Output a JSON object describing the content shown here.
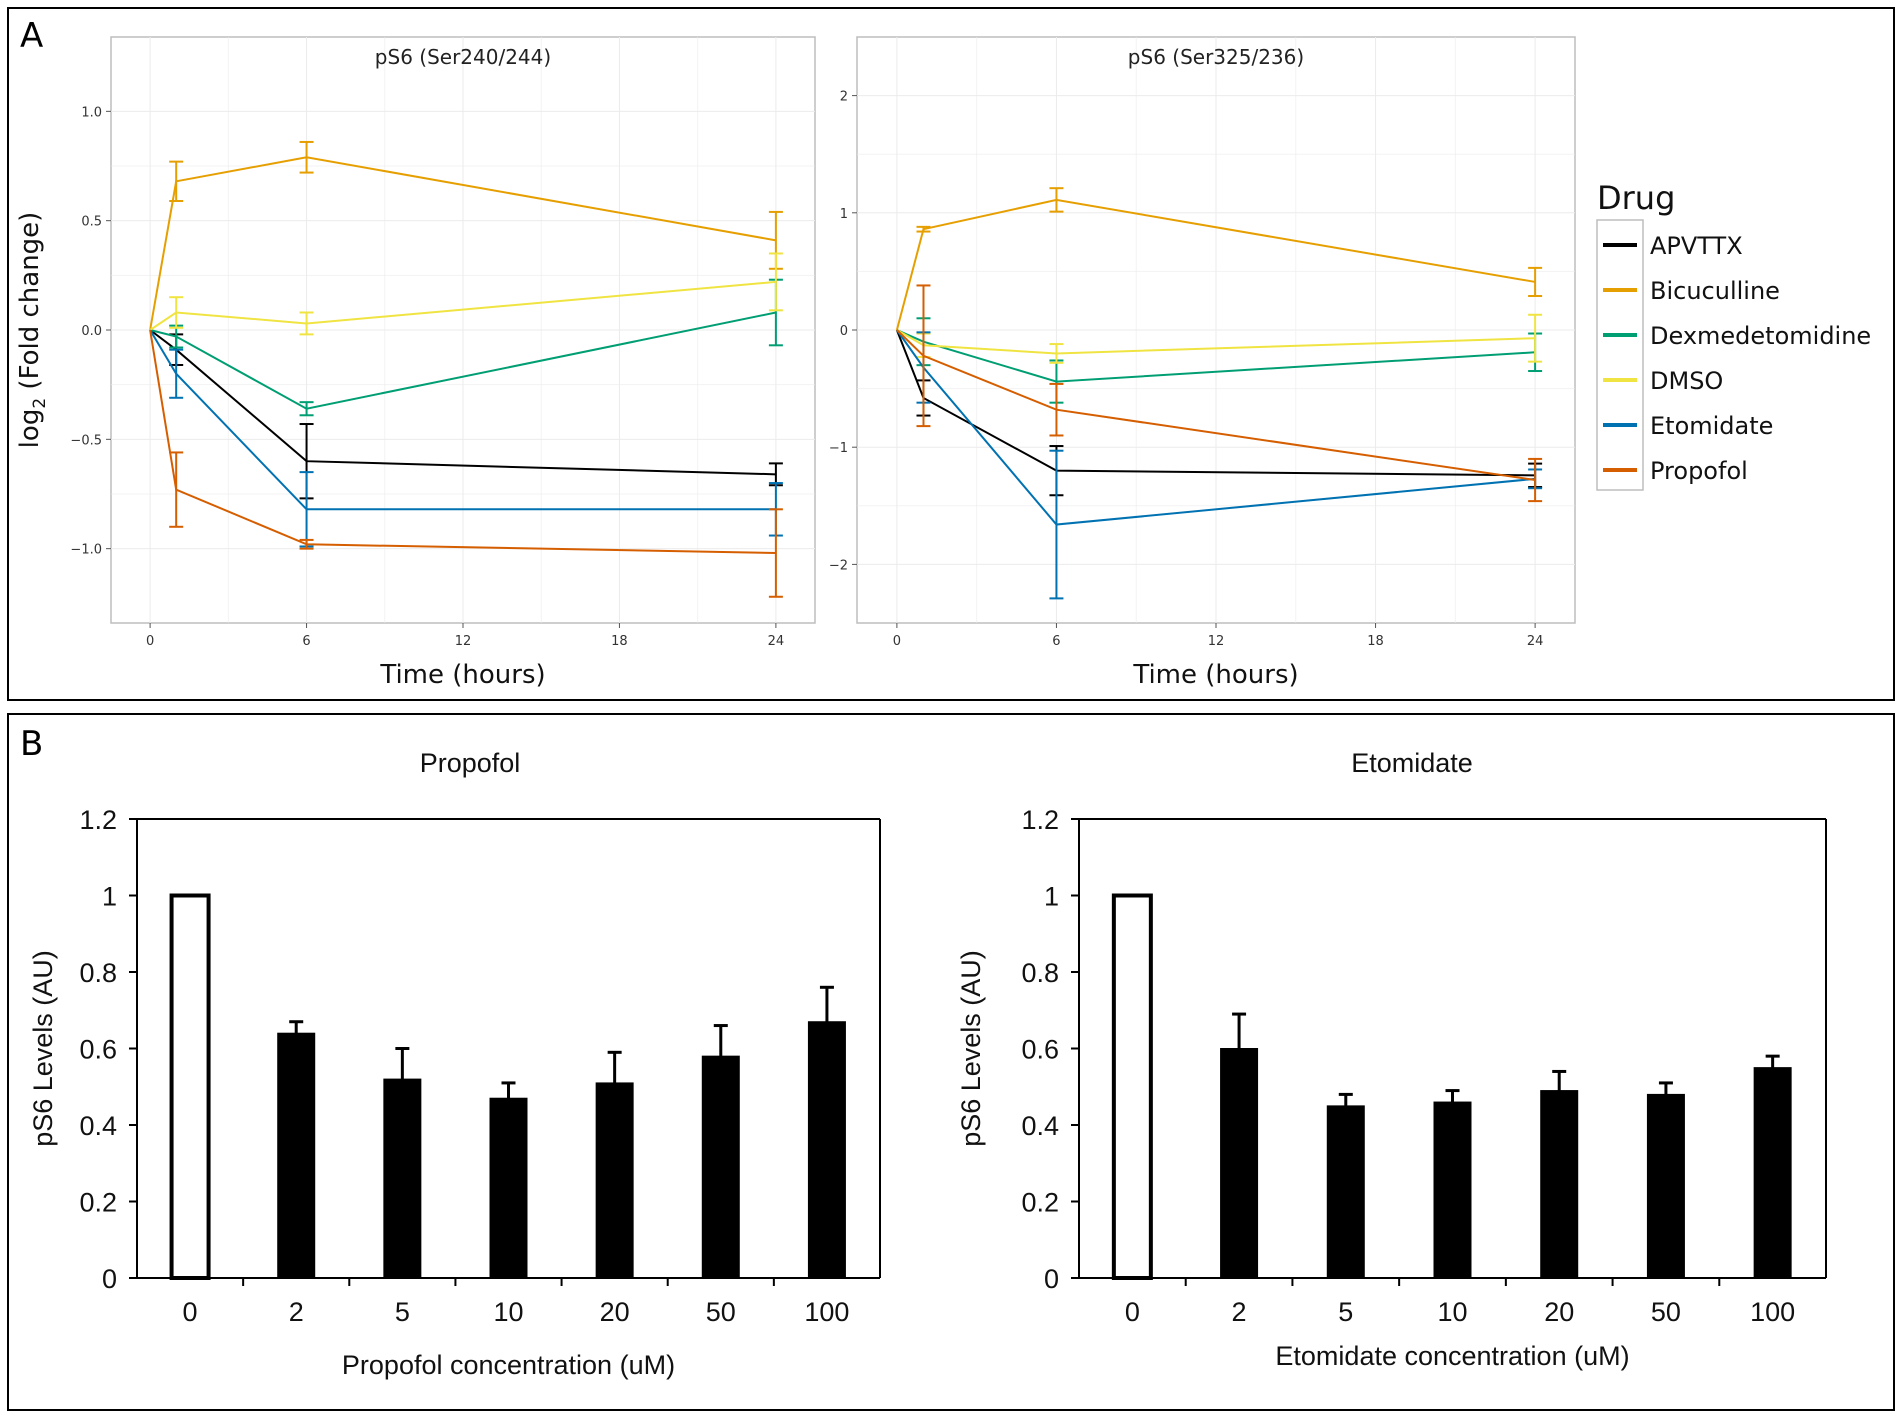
{
  "panel_labels": {
    "a": "A",
    "b": "B"
  },
  "legend": {
    "title": "Drug",
    "items": [
      {
        "name": "APVTTX",
        "color": "#000000"
      },
      {
        "name": "Bicuculline",
        "color": "#E69F00"
      },
      {
        "name": "Dexmedetomidine",
        "color": "#009E73"
      },
      {
        "name": "DMSO",
        "color": "#F0E442"
      },
      {
        "name": "Etomidate",
        "color": "#0072B2"
      },
      {
        "name": "Propofol",
        "color": "#D55E00"
      }
    ]
  },
  "chart_data": [
    {
      "type": "line",
      "title": "pS6 (Ser240/244)",
      "xlabel": "Time (hours)",
      "ylabel_main": "log",
      "ylabel_sub": "2",
      "ylabel_rest": " (Fold change)",
      "xlim": [
        -1.5,
        25.5
      ],
      "ylim": [
        -1.34,
        1.34
      ],
      "xticks": [
        0,
        6,
        12,
        18,
        24
      ],
      "yticks": [
        -1.0,
        -0.5,
        0.0,
        0.5,
        1.0
      ],
      "ytick_labels": [
        "−1.0",
        "−0.5",
        "0.0",
        "0.5",
        "1.0"
      ],
      "x": [
        0,
        1,
        6,
        24
      ],
      "series": [
        {
          "name": "APVTTX",
          "values": [
            0,
            -0.09,
            -0.6,
            -0.66
          ],
          "err": [
            0,
            0.07,
            0.17,
            0.05
          ]
        },
        {
          "name": "Bicuculline",
          "values": [
            0,
            0.68,
            0.79,
            0.41
          ],
          "err": [
            0,
            0.09,
            0.07,
            0.13
          ]
        },
        {
          "name": "Dexmedetomidine",
          "values": [
            0,
            -0.03,
            -0.36,
            0.08
          ],
          "err": [
            0,
            0.05,
            0.03,
            0.15
          ]
        },
        {
          "name": "DMSO",
          "values": [
            0,
            0.08,
            0.03,
            0.22
          ],
          "err": [
            0,
            0.07,
            0.05,
            0.13
          ]
        },
        {
          "name": "Etomidate",
          "values": [
            0,
            -0.2,
            -0.82,
            -0.82
          ],
          "err": [
            0,
            0.11,
            0.17,
            0.12
          ]
        },
        {
          "name": "Propofol",
          "values": [
            0,
            -0.73,
            -0.98,
            -1.02
          ],
          "err": [
            0,
            0.17,
            0.02,
            0.2
          ]
        }
      ]
    },
    {
      "type": "line",
      "title": "pS6 (Ser325/236)",
      "xlabel": "Time (hours)",
      "xlim": [
        -1.5,
        25.5
      ],
      "ylim": [
        -2.5,
        2.5
      ],
      "xticks": [
        0,
        6,
        12,
        18,
        24
      ],
      "yticks": [
        -2,
        -1,
        0,
        1,
        2
      ],
      "ytick_labels": [
        "−2",
        "−1",
        "0",
        "1",
        "2"
      ],
      "x": [
        0,
        1,
        6,
        24
      ],
      "series": [
        {
          "name": "APVTTX",
          "values": [
            0,
            -0.58,
            -1.2,
            -1.24
          ],
          "err": [
            0,
            0.15,
            0.21,
            0.1
          ]
        },
        {
          "name": "Bicuculline",
          "values": [
            0,
            0.86,
            1.11,
            0.41
          ],
          "err": [
            0,
            0.02,
            0.1,
            0.12
          ]
        },
        {
          "name": "Dexmedetomidine",
          "values": [
            0,
            -0.1,
            -0.44,
            -0.19
          ],
          "err": [
            0,
            0.2,
            0.18,
            0.16
          ]
        },
        {
          "name": "DMSO",
          "values": [
            0,
            -0.13,
            -0.2,
            -0.07
          ],
          "err": [
            0,
            0.1,
            0.08,
            0.2
          ]
        },
        {
          "name": "Etomidate",
          "values": [
            0,
            -0.32,
            -1.66,
            -1.27
          ],
          "err": [
            0,
            0.3,
            0.63,
            0.08
          ]
        },
        {
          "name": "Propofol",
          "values": [
            0,
            -0.22,
            -0.68,
            -1.28
          ],
          "err": [
            0,
            0.6,
            0.22,
            0.18
          ]
        }
      ]
    },
    {
      "type": "bar",
      "title": "Propofol",
      "xlabel": "Propofol concentration (uM)",
      "ylabel": "pS6 Levels (AU)",
      "ylim": [
        0,
        1.2
      ],
      "yticks": [
        0,
        0.2,
        0.4,
        0.6,
        0.8,
        1,
        1.2
      ],
      "ytick_labels": [
        "0",
        "0.2",
        "0.4",
        "0.6",
        "0.8",
        "1",
        "1.2"
      ],
      "categories": [
        "0",
        "2",
        "5",
        "10",
        "20",
        "50",
        "100"
      ],
      "values": [
        1.0,
        0.64,
        0.52,
        0.47,
        0.51,
        0.58,
        0.67
      ],
      "err": [
        0,
        0.03,
        0.08,
        0.04,
        0.08,
        0.08,
        0.09
      ],
      "control_index": 0
    },
    {
      "type": "bar",
      "title": "Etomidate",
      "xlabel": "Etomidate concentration (uM)",
      "ylabel": "pS6 Levels (AU)",
      "ylim": [
        0,
        1.2
      ],
      "yticks": [
        0,
        0.2,
        0.4,
        0.6,
        0.8,
        1,
        1.2
      ],
      "ytick_labels": [
        "0",
        "0.2",
        "0.4",
        "0.6",
        "0.8",
        "1",
        "1.2"
      ],
      "categories": [
        "0",
        "2",
        "5",
        "10",
        "20",
        "50",
        "100"
      ],
      "values": [
        1.0,
        0.6,
        0.45,
        0.46,
        0.49,
        0.48,
        0.55
      ],
      "err": [
        0,
        0.09,
        0.03,
        0.03,
        0.05,
        0.03,
        0.03
      ],
      "control_index": 0
    }
  ]
}
